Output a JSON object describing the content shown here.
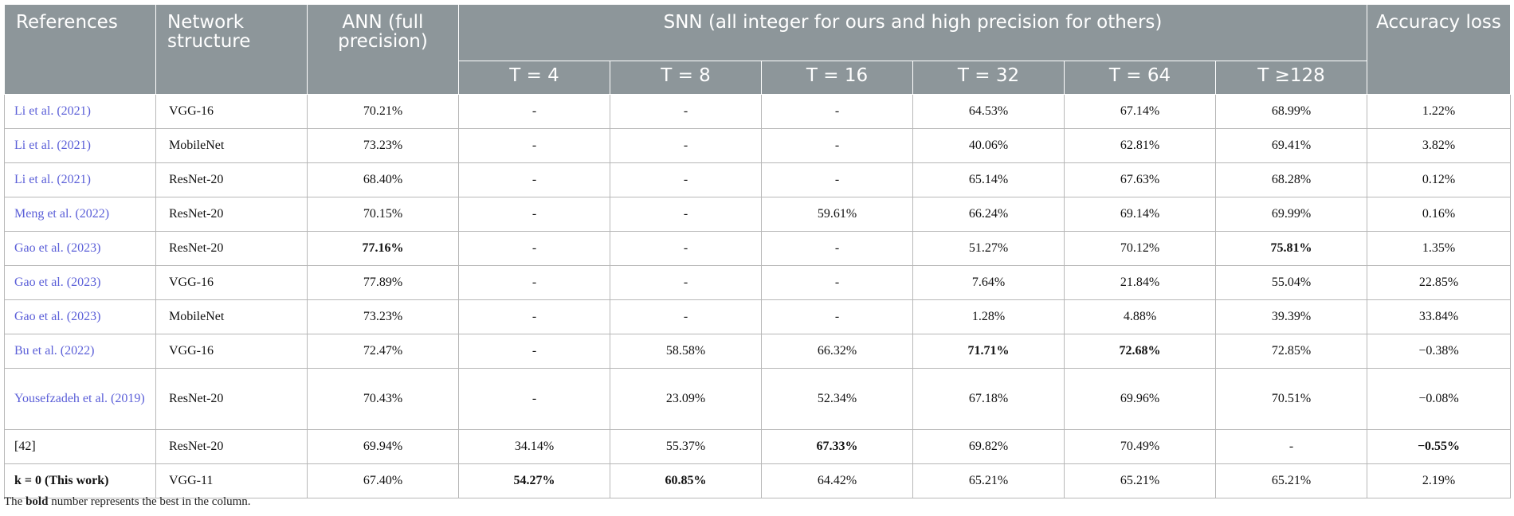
{
  "header": {
    "references": "References",
    "network_structure": "Network structure",
    "ann": "ANN (full precision)",
    "snn": "SNN (all integer for ours and high precision for others)",
    "accuracy_loss": "Accuracy loss",
    "timesteps": [
      "T = 4",
      "T = 8",
      "T = 16",
      "T = 32",
      "T = 64",
      "T ≥128"
    ]
  },
  "rows": [
    {
      "ref": "Li et al. (2021)",
      "net": "VGG-16",
      "ann": "70.21%",
      "t4": "-",
      "t8": "-",
      "t16": "-",
      "t32": "64.53%",
      "t64": "67.14%",
      "t128": "68.99%",
      "loss": "1.22%"
    },
    {
      "ref": "Li et al. (2021)",
      "net": "MobileNet",
      "ann": "73.23%",
      "t4": "-",
      "t8": "-",
      "t16": "-",
      "t32": "40.06%",
      "t64": "62.81%",
      "t128": "69.41%",
      "loss": "3.82%"
    },
    {
      "ref": "Li et al. (2021)",
      "net": "ResNet-20",
      "ann": "68.40%",
      "t4": "-",
      "t8": "-",
      "t16": "-",
      "t32": "65.14%",
      "t64": "67.63%",
      "t128": "68.28%",
      "loss": "0.12%"
    },
    {
      "ref": "Meng et al. (2022)",
      "net": "ResNet-20",
      "ann": "70.15%",
      "t4": "-",
      "t8": "-",
      "t16": "59.61%",
      "t32": "66.24%",
      "t64": "69.14%",
      "t128": "69.99%",
      "loss": "0.16%"
    },
    {
      "ref": "Gao et al. (2023)",
      "net": "ResNet-20",
      "ann": "77.16%",
      "t4": "-",
      "t8": "-",
      "t16": "-",
      "t32": "51.27%",
      "t64": "70.12%",
      "t128": "75.81%",
      "loss": "1.35%"
    },
    {
      "ref": "Gao et al. (2023)",
      "net": "VGG-16",
      "ann": "77.89%",
      "t4": "-",
      "t8": "-",
      "t16": "-",
      "t32": "7.64%",
      "t64": "21.84%",
      "t128": "55.04%",
      "loss": "22.85%"
    },
    {
      "ref": "Gao et al. (2023)",
      "net": "MobileNet",
      "ann": "73.23%",
      "t4": "-",
      "t8": "-",
      "t16": "-",
      "t32": "1.28%",
      "t64": "4.88%",
      "t128": "39.39%",
      "loss": "33.84%"
    },
    {
      "ref": "Bu et al. (2022)",
      "net": "VGG-16",
      "ann": "72.47%",
      "t4": "-",
      "t8": "58.58%",
      "t16": "66.32%",
      "t32": "71.71%",
      "t64": "72.68%",
      "t128": "72.85%",
      "loss": "−0.38%"
    },
    {
      "ref": "Yousefzadeh et al. (2019)",
      "net": "ResNet-20",
      "ann": "70.43%",
      "t4": "-",
      "t8": "23.09%",
      "t16": "52.34%",
      "t32": "67.18%",
      "t64": "69.96%",
      "t128": "70.51%",
      "loss": "−0.08%"
    },
    {
      "ref": "[42]",
      "net": "ResNet-20",
      "ann": "69.94%",
      "t4": "34.14%",
      "t8": "55.37%",
      "t16": "67.33%",
      "t32": "69.82%",
      "t64": "70.49%",
      "t128": "-",
      "loss": "−0.55%"
    },
    {
      "ref": "k = 0 (This work)",
      "net": "VGG-11",
      "ann": "67.40%",
      "t4": "54.27%",
      "t8": "60.85%",
      "t16": "64.42%",
      "t32": "65.21%",
      "t64": "65.21%",
      "t128": "65.21%",
      "loss": "2.19%"
    }
  ],
  "footnote": {
    "pre": "The ",
    "bold": "bold",
    "post": " number represents the best in the column."
  }
}
